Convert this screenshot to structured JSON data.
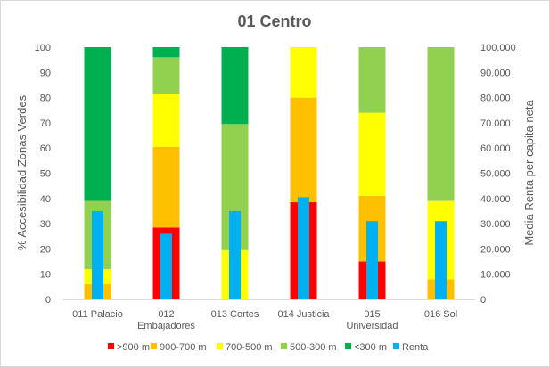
{
  "chart_data": {
    "type": "bar",
    "stacked": true,
    "title": "01 Centro",
    "ylabel": "% Accesibilidad Zonas Verdes",
    "y2label": "Media Renta per capita neta",
    "ylim": [
      0,
      100
    ],
    "y2lim": [
      0,
      100000
    ],
    "yticks": [
      "0",
      "10",
      "20",
      "30",
      "40",
      "50",
      "60",
      "70",
      "80",
      "90",
      "100"
    ],
    "y2ticks": [
      "0",
      "10.000",
      "20.000",
      "30.000",
      "40.000",
      "50.000",
      "60.000",
      "70.000",
      "80.000",
      "90.000",
      "100.000"
    ],
    "categories": [
      [
        "011 Palacio"
      ],
      [
        "012",
        "Embajadores"
      ],
      [
        "013 Cortes"
      ],
      [
        "014 Justicia"
      ],
      [
        "015",
        "Universidad"
      ],
      [
        "016 Sol"
      ]
    ],
    "grid": false,
    "legend_position": "bottom",
    "series": [
      {
        "name": ">900 m",
        "color": "#ff0000",
        "values": [
          0,
          28.5,
          0,
          38.5,
          15,
          0
        ]
      },
      {
        "name": "900-700 m",
        "color": "#ffc000",
        "values": [
          6,
          32,
          0,
          41.5,
          26,
          8
        ]
      },
      {
        "name": "700-500 m",
        "color": "#ffff00",
        "values": [
          6,
          21,
          19.5,
          20,
          33,
          31
        ]
      },
      {
        "name": "500-300 m",
        "color": "#92d050",
        "values": [
          27,
          14.5,
          50,
          0,
          26,
          61
        ]
      },
      {
        "name": "<300 m",
        "color": "#00b050",
        "values": [
          61,
          4,
          30.5,
          0,
          0,
          0
        ]
      }
    ],
    "secondary_series": {
      "name": "Renta",
      "color": "#00b0f0",
      "axis": "right",
      "values": [
        35000,
        26000,
        35000,
        40500,
        31000,
        31000
      ]
    }
  }
}
